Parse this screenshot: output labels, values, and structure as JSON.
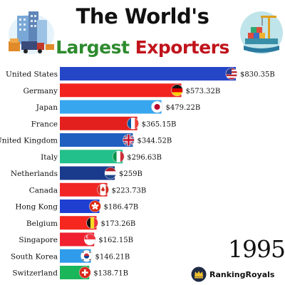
{
  "title": {
    "line1": "The World's",
    "line2_part1": "Largest",
    "line2_part2": "Exporters"
  },
  "year": "1995",
  "brand": "RankingRoyals",
  "colors": {
    "title_green": "#2e8b2e",
    "title_red": "#c0141c"
  },
  "chart_data": {
    "type": "bar",
    "orientation": "horizontal",
    "categories": [
      "United States",
      "Germany",
      "Japan",
      "France",
      "United Kingdom",
      "Italy",
      "Netherlands",
      "Canada",
      "Hong Kong",
      "Belgium",
      "Singapore",
      "South Korea",
      "Switzerland"
    ],
    "values": [
      830.35,
      573.32,
      479.22,
      365.15,
      344.52,
      296.63,
      259,
      223.73,
      186.47,
      173.26,
      162.15,
      146.21,
      138.71
    ],
    "value_labels": [
      "$830.35B",
      "$573.32B",
      "$479.22B",
      "$365.15B",
      "$344.52B",
      "$296.63B",
      "$259B",
      "$223.73B",
      "$186.47B",
      "$173.26B",
      "$162.15B",
      "$146.21B",
      "$138.71B"
    ],
    "bar_colors": [
      "#2646c8",
      "#f2231f",
      "#38a6ee",
      "#e3201d",
      "#1f5fbf",
      "#24c08c",
      "#1a3a8c",
      "#f22525",
      "#1f3fd0",
      "#f5271f",
      "#f02030",
      "#2f9bea",
      "#1bb55a"
    ],
    "flags": [
      "us-flag",
      "germany-flag",
      "japan-flag",
      "france-flag",
      "uk-flag",
      "italy-flag",
      "netherlands-flag",
      "canada-flag",
      "hong-kong-flag",
      "belgium-flag",
      "singapore-flag",
      "south-korea-flag",
      "switzerland-flag"
    ],
    "xlim": [
      0,
      830.35
    ],
    "grid": false,
    "legend": "none"
  }
}
